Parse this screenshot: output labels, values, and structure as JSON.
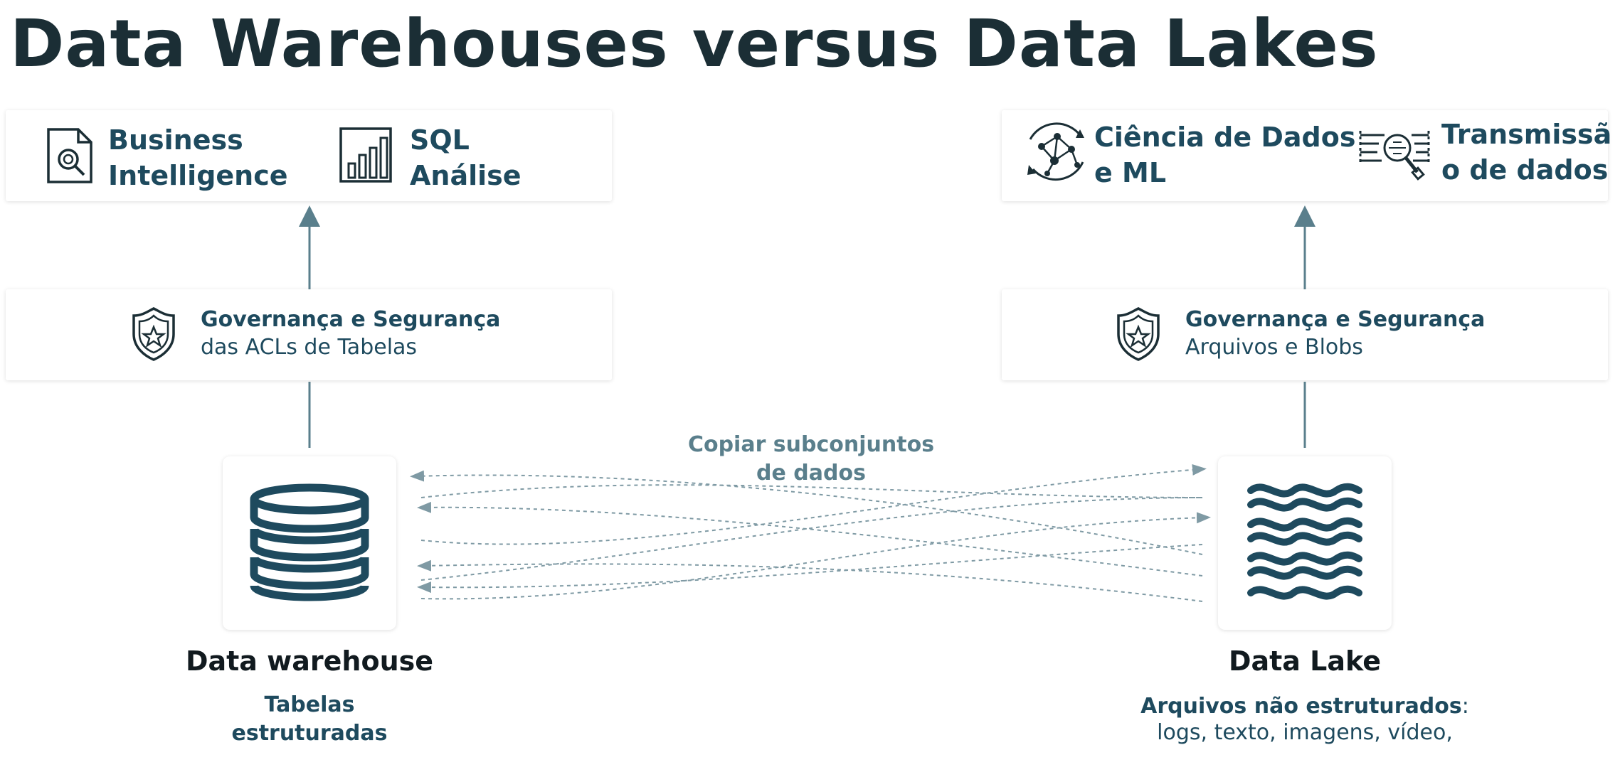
{
  "title": "Data Warehouses versus Data Lakes",
  "warehouse_side": {
    "use_cases": [
      {
        "line1": "Business",
        "line2": "Intelligence",
        "icon": "report-magnifier-icon"
      },
      {
        "line1": "SQL",
        "line2": "Análise",
        "icon": "bar-chart-icon"
      }
    ],
    "governance": {
      "title": "Governança e Segurança",
      "subtitle": "das ACLs de Tabelas",
      "icon": "shield-badge-icon"
    },
    "store": {
      "name": "Data warehouse",
      "desc_line1": "Tabelas",
      "desc_line2": "estruturadas",
      "icon": "database-icon"
    }
  },
  "lake_side": {
    "use_cases": [
      {
        "line1": "Ciência de Dados",
        "line2": "e ML",
        "icon": "network-graph-icon"
      },
      {
        "line1": "Transmissã",
        "line2": "o de dados",
        "icon": "stream-magnifier-icon"
      }
    ],
    "governance": {
      "title": "Governança e Segurança",
      "subtitle": "Arquivos e Blobs",
      "icon": "shield-badge-icon"
    },
    "store": {
      "name": "Data Lake",
      "desc_bold": "Arquivos não estruturados",
      "desc_colon": ":",
      "desc_line2": "logs, texto, imagens, vídeo,",
      "icon": "waves-icon"
    }
  },
  "copy_label": {
    "line1": "Copiar subconjuntos",
    "line2": "de dados"
  },
  "colors": {
    "title": "#1b2e35",
    "accent": "#1e4a5e",
    "connector": "#5a7f8c"
  }
}
